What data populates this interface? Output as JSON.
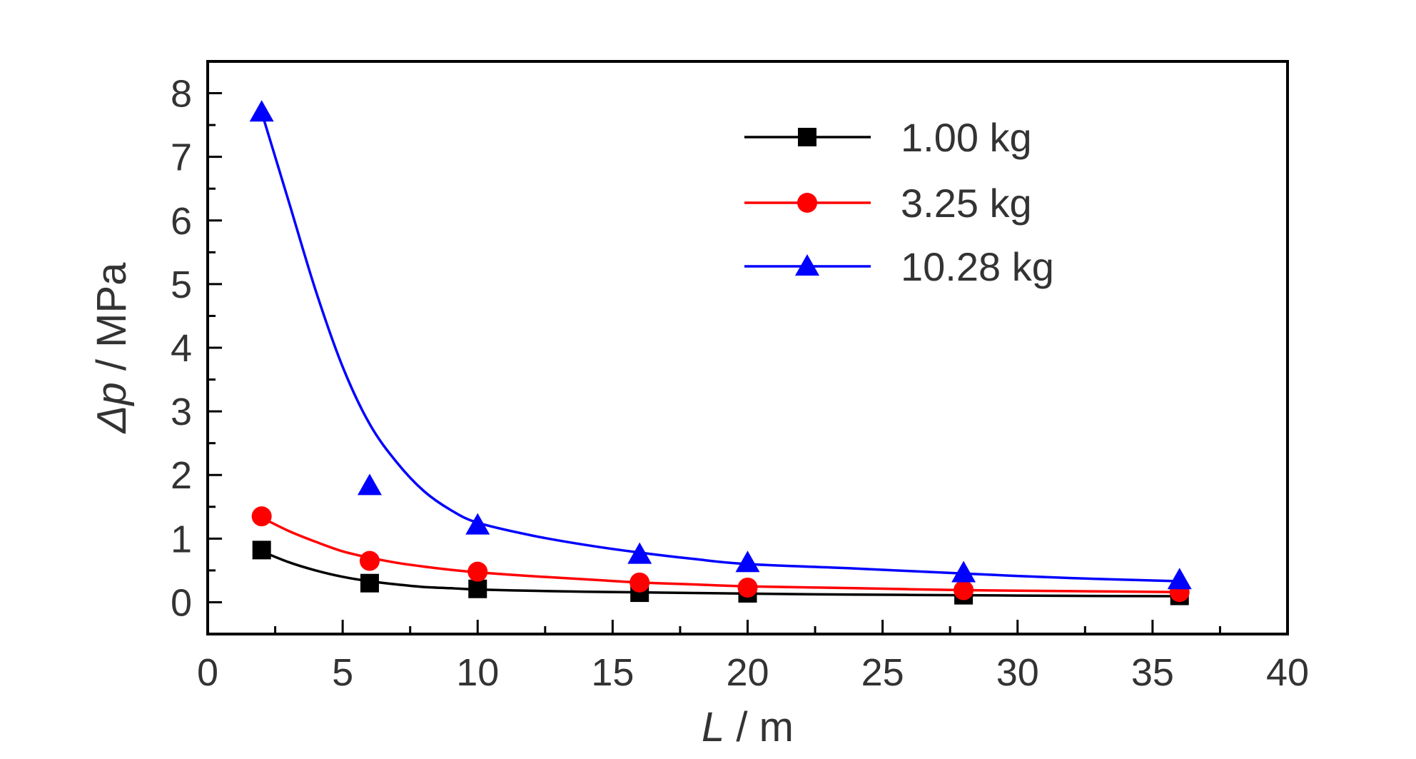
{
  "chart_data": {
    "type": "line",
    "xlabel": {
      "var": "L",
      "sep": " / ",
      "unit": "m"
    },
    "ylabel": {
      "var": "Δp",
      "sep": " / ",
      "unit": "MPa"
    },
    "xlim": [
      0,
      40
    ],
    "ylim": [
      -0.5,
      8.5
    ],
    "xticks": [
      0,
      5,
      10,
      15,
      20,
      25,
      30,
      35,
      40
    ],
    "yticks": [
      0,
      1,
      2,
      3,
      4,
      5,
      6,
      7,
      8
    ],
    "x_minor_step": 2.5,
    "y_minor_step": 0.5,
    "grid": false,
    "legend_position": "top-right",
    "series": [
      {
        "name": "1.00 kg",
        "marker": "square",
        "color": "#000000",
        "x": [
          2,
          6,
          10,
          16,
          20,
          28,
          36
        ],
        "y": [
          0.82,
          0.3,
          0.21,
          0.15,
          0.14,
          0.11,
          0.1
        ],
        "fit": [
          [
            2,
            0.8
          ],
          [
            3,
            0.63
          ],
          [
            4,
            0.5
          ],
          [
            5,
            0.4
          ],
          [
            6,
            0.33
          ],
          [
            7,
            0.28
          ],
          [
            8,
            0.24
          ],
          [
            9,
            0.22
          ],
          [
            10,
            0.2
          ],
          [
            12,
            0.18
          ],
          [
            14,
            0.165
          ],
          [
            16,
            0.155
          ],
          [
            18,
            0.145
          ],
          [
            20,
            0.135
          ],
          [
            24,
            0.12
          ],
          [
            28,
            0.11
          ],
          [
            32,
            0.1
          ],
          [
            36,
            0.095
          ]
        ]
      },
      {
        "name": "3.25 kg",
        "marker": "circle",
        "color": "#ff0000",
        "x": [
          2,
          6,
          10,
          16,
          20,
          28,
          36
        ],
        "y": [
          1.35,
          0.65,
          0.48,
          0.31,
          0.23,
          0.19,
          0.16
        ],
        "fit": [
          [
            2,
            1.33
          ],
          [
            3,
            1.12
          ],
          [
            4,
            0.95
          ],
          [
            5,
            0.8
          ],
          [
            6,
            0.7
          ],
          [
            7,
            0.62
          ],
          [
            8,
            0.56
          ],
          [
            9,
            0.51
          ],
          [
            10,
            0.47
          ],
          [
            12,
            0.41
          ],
          [
            14,
            0.36
          ],
          [
            16,
            0.31
          ],
          [
            18,
            0.28
          ],
          [
            20,
            0.25
          ],
          [
            24,
            0.22
          ],
          [
            28,
            0.19
          ],
          [
            32,
            0.175
          ],
          [
            36,
            0.16
          ]
        ]
      },
      {
        "name": "10.28 kg",
        "marker": "triangle",
        "color": "#0000ff",
        "x": [
          2,
          6,
          10,
          16,
          20,
          28,
          36
        ],
        "y": [
          7.7,
          1.83,
          1.21,
          0.75,
          0.62,
          0.46,
          0.35
        ],
        "fit": [
          [
            2,
            7.7
          ],
          [
            3,
            6.3
          ],
          [
            4,
            4.9
          ],
          [
            5,
            3.7
          ],
          [
            6,
            2.8
          ],
          [
            7,
            2.2
          ],
          [
            8,
            1.75
          ],
          [
            9,
            1.45
          ],
          [
            10,
            1.25
          ],
          [
            12,
            1.05
          ],
          [
            14,
            0.9
          ],
          [
            16,
            0.78
          ],
          [
            18,
            0.68
          ],
          [
            20,
            0.6
          ],
          [
            24,
            0.53
          ],
          [
            28,
            0.45
          ],
          [
            32,
            0.38
          ],
          [
            36,
            0.33
          ]
        ]
      }
    ]
  }
}
